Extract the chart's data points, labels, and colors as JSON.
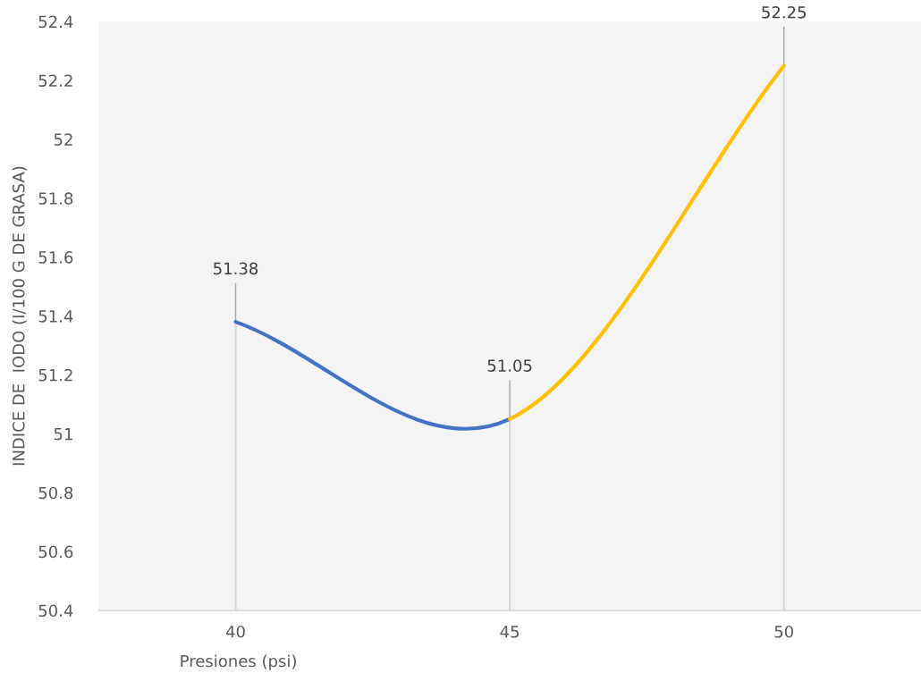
{
  "chart_data": {
    "type": "line",
    "xlabel": "Presiones (psi)",
    "ylabel": "INDICE DE  IODO (I/100 G DE GRASA)",
    "x": [
      40,
      45,
      50
    ],
    "xlim": [
      37.5,
      52.5
    ],
    "xticks": [
      40,
      45,
      50
    ],
    "ylim": [
      50.4,
      52.4
    ],
    "yticks": [
      50.4,
      50.6,
      50.8,
      51,
      51.2,
      51.4,
      51.6,
      51.8,
      52,
      52.2,
      52.4
    ],
    "series": [
      {
        "color": "#4472c4",
        "values": [
          51.38,
          51.05,
          null
        ],
        "value_labels": [
          "51.38",
          null,
          null
        ]
      },
      {
        "color": "#ffc000",
        "values": [
          null,
          51.05,
          52.25
        ],
        "value_labels": [
          null,
          "51.05",
          "52.25"
        ]
      }
    ],
    "ref_lines": [
      {
        "axis": "x",
        "value": 40,
        "color": "#d9d9d9"
      },
      {
        "axis": "x",
        "value": 45,
        "color": "#d9d9d9"
      },
      {
        "axis": "x",
        "value": 50,
        "color": "#d9d9d9"
      }
    ],
    "grid": false,
    "legend": false
  }
}
